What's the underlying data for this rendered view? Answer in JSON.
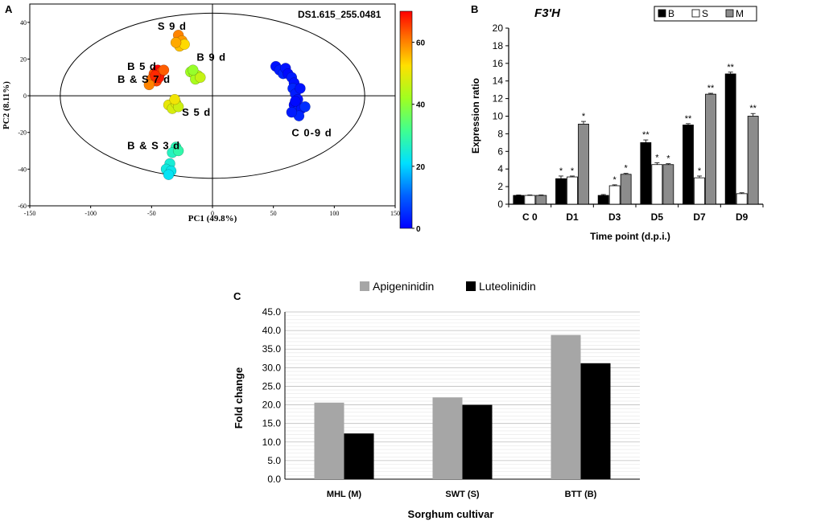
{
  "panel_labels": {
    "a": "A",
    "b": "B",
    "c": "C"
  },
  "chart_data": [
    {
      "type": "scatter",
      "panel": "A",
      "colorbar_title": "DS1.615_255.0481",
      "xlabel": "PC1 (49.8%)",
      "ylabel": "PC2 (8.11%)",
      "xlim": [
        -150,
        150
      ],
      "ylim": [
        -60,
        50
      ],
      "xticks": [
        -150,
        -100,
        -50,
        0,
        50,
        100,
        150
      ],
      "yticks": [
        -60,
        -40,
        -20,
        0,
        20,
        40
      ],
      "colorbar_ticks": [
        0,
        20,
        40,
        60
      ],
      "colorbar_range": [
        0,
        70
      ],
      "ellipse": {
        "cx": 0,
        "cy": 0,
        "rx": 125,
        "ry": 45
      },
      "group_labels": [
        {
          "text": "S 9 d",
          "x": -45,
          "y": 36
        },
        {
          "text": "B 9 d",
          "x": -13,
          "y": 19
        },
        {
          "text": "B 5 d",
          "x": -70,
          "y": 14
        },
        {
          "text": "B & S 7 d",
          "x": -78,
          "y": 7
        },
        {
          "text": "S 5 d",
          "x": -25,
          "y": -11
        },
        {
          "text": "C 0-9 d",
          "x": 65,
          "y": -22
        },
        {
          "text": "B & S 3 d",
          "x": -70,
          "y": -29
        }
      ],
      "points": [
        {
          "x": -28,
          "y": 33,
          "v": 60
        },
        {
          "x": -25,
          "y": 30,
          "v": 58
        },
        {
          "x": -27,
          "y": 27,
          "v": 55
        },
        {
          "x": -23,
          "y": 28,
          "v": 53
        },
        {
          "x": -30,
          "y": 29,
          "v": 57
        },
        {
          "x": -18,
          "y": 13,
          "v": 42
        },
        {
          "x": -15,
          "y": 12,
          "v": 44
        },
        {
          "x": -12,
          "y": 11,
          "v": 45
        },
        {
          "x": -14,
          "y": 9,
          "v": 43
        },
        {
          "x": -10,
          "y": 10,
          "v": 46
        },
        {
          "x": -16,
          "y": 14,
          "v": 41
        },
        {
          "x": -48,
          "y": 12,
          "v": 64
        },
        {
          "x": -45,
          "y": 14,
          "v": 70
        },
        {
          "x": -42,
          "y": 13,
          "v": 66
        },
        {
          "x": -50,
          "y": 9,
          "v": 62
        },
        {
          "x": -46,
          "y": 8,
          "v": 65
        },
        {
          "x": -52,
          "y": 6,
          "v": 60
        },
        {
          "x": -44,
          "y": 10,
          "v": 68
        },
        {
          "x": -47,
          "y": 11,
          "v": 67
        },
        {
          "x": -40,
          "y": 14,
          "v": 63
        },
        {
          "x": -36,
          "y": -5,
          "v": 50
        },
        {
          "x": -33,
          "y": -7,
          "v": 48
        },
        {
          "x": -30,
          "y": -4,
          "v": 49
        },
        {
          "x": -28,
          "y": -6,
          "v": 47
        },
        {
          "x": -31,
          "y": -2,
          "v": 51
        },
        {
          "x": 52,
          "y": 16,
          "v": 2
        },
        {
          "x": 55,
          "y": 14,
          "v": 3
        },
        {
          "x": 58,
          "y": 12,
          "v": 4
        },
        {
          "x": 60,
          "y": 15,
          "v": 2
        },
        {
          "x": 62,
          "y": 12,
          "v": 1
        },
        {
          "x": 65,
          "y": 10,
          "v": 3
        },
        {
          "x": 67,
          "y": 7,
          "v": 2
        },
        {
          "x": 66,
          "y": 4,
          "v": 4
        },
        {
          "x": 68,
          "y": 1,
          "v": 3
        },
        {
          "x": 70,
          "y": -2,
          "v": 2
        },
        {
          "x": 67,
          "y": -5,
          "v": 1
        },
        {
          "x": 70,
          "y": -8,
          "v": 3
        },
        {
          "x": 73,
          "y": -7,
          "v": 2
        },
        {
          "x": 76,
          "y": -6,
          "v": 5
        },
        {
          "x": 71,
          "y": -11,
          "v": 4
        },
        {
          "x": 65,
          "y": -9,
          "v": 3
        },
        {
          "x": 68,
          "y": -3,
          "v": 1
        },
        {
          "x": 72,
          "y": 4,
          "v": 2
        },
        {
          "x": -30,
          "y": -28,
          "v": 28
        },
        {
          "x": -33,
          "y": -31,
          "v": 27
        },
        {
          "x": -28,
          "y": -30,
          "v": 29
        },
        {
          "x": -35,
          "y": -37,
          "v": 25
        },
        {
          "x": -38,
          "y": -40,
          "v": 24
        },
        {
          "x": -34,
          "y": -41,
          "v": 23
        },
        {
          "x": -36,
          "y": -43,
          "v": 22
        }
      ]
    },
    {
      "type": "bar",
      "panel": "B",
      "title": "F3'H",
      "categories": [
        "C 0",
        "D1",
        "D3",
        "D5",
        "D7",
        "D9"
      ],
      "series": [
        {
          "name": "B",
          "color": "#000000",
          "values": [
            1.0,
            2.9,
            1.0,
            7.0,
            9.0,
            14.8
          ],
          "errors": [
            0.05,
            0.3,
            0.1,
            0.3,
            0.15,
            0.2
          ],
          "stars": [
            "",
            "*",
            "",
            "**",
            "**",
            "**"
          ]
        },
        {
          "name": "S",
          "color": "#ffffff",
          "values": [
            1.0,
            3.1,
            2.1,
            4.5,
            3.0,
            1.2
          ],
          "errors": [
            0.05,
            0.1,
            0.1,
            0.2,
            0.2,
            0.1
          ],
          "stars": [
            "",
            "*",
            "*",
            "*",
            "*",
            ""
          ]
        },
        {
          "name": "M",
          "color": "#8c8c8c",
          "values": [
            1.0,
            9.1,
            3.4,
            4.5,
            12.5,
            10.0
          ],
          "errors": [
            0.05,
            0.3,
            0.1,
            0.1,
            0.1,
            0.3
          ],
          "stars": [
            "",
            "*",
            "*",
            "*",
            "**",
            "**"
          ]
        }
      ],
      "xlabel": "Time point  (d.p.i.)",
      "ylabel": "Expression ratio",
      "ylim": [
        0,
        20
      ],
      "yticks": [
        0,
        2,
        4,
        6,
        8,
        10,
        12,
        14,
        16,
        18,
        20
      ],
      "legend_position": "top-right"
    },
    {
      "type": "bar",
      "panel": "C",
      "categories": [
        "MHL (M)",
        "SWT (S)",
        "BTT (B)"
      ],
      "series": [
        {
          "name": "Apigeninidin",
          "color": "#a6a6a6",
          "values": [
            20.6,
            22.0,
            38.8
          ]
        },
        {
          "name": "Luteolinidin",
          "color": "#000000",
          "values": [
            12.3,
            20.0,
            31.2
          ]
        }
      ],
      "xlabel": "Sorghum cultivar",
      "ylabel": "Fold change",
      "ylim": [
        0,
        45
      ],
      "yticks": [
        "0.0",
        "5.0",
        "10.0",
        "15.0",
        "20.0",
        "25.0",
        "30.0",
        "35.0",
        "40.0",
        "45.0"
      ],
      "legend_position": "top",
      "grid": true
    }
  ]
}
